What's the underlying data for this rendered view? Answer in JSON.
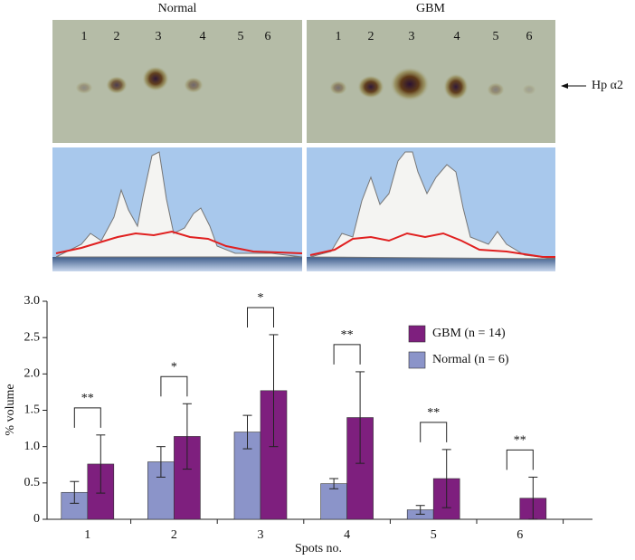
{
  "figure": {
    "normal_label": "Normal",
    "gbm_label": "GBM",
    "lanes": [
      "1",
      "2",
      "3",
      "4",
      "5",
      "6"
    ],
    "band_label": "Hp α2"
  },
  "chart_data": {
    "type": "bar",
    "categories": [
      "1",
      "2",
      "3",
      "4",
      "5",
      "6"
    ],
    "series": [
      {
        "name": "Normal (n = 6)",
        "color": "#8b94c9",
        "values": [
          0.37,
          0.79,
          1.2,
          0.49,
          0.13,
          null
        ],
        "errors": [
          0.15,
          0.21,
          0.23,
          0.07,
          0.06,
          null
        ]
      },
      {
        "name": "GBM (n = 14)",
        "color": "#7e1f7e",
        "values": [
          0.76,
          1.14,
          1.77,
          1.4,
          0.56,
          0.29
        ],
        "errors": [
          0.4,
          0.45,
          0.77,
          0.63,
          0.4,
          0.29
        ]
      }
    ],
    "significance": [
      "**",
      "*",
      "*",
      "**",
      "**",
      "**"
    ],
    "xlabel": "Spots no.",
    "ylabel": "% volume",
    "ylim": [
      0,
      3
    ],
    "yticks": [
      0,
      0.5,
      {
        "value": 1,
        "label": "1.0"
      },
      1.5,
      {
        "value": 2,
        "label": "2.0"
      },
      2.5,
      {
        "value": 3,
        "label": "3.0"
      }
    ]
  }
}
